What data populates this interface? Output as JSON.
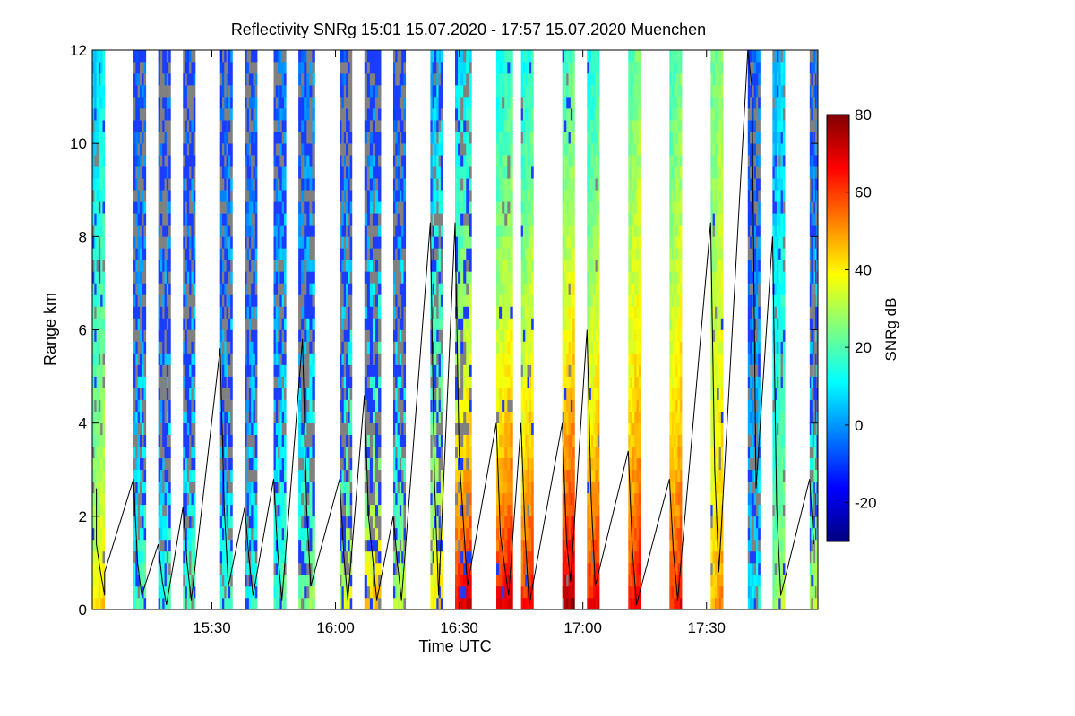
{
  "chart_data": {
    "type": "heatmap",
    "title": "Reflectivity SNRg   15:01 15.07.2020 - 17:57 15.07.2020 Muenchen",
    "xlabel": "Time UTC",
    "ylabel": "Range km",
    "xlim": [
      "15:01",
      "17:57"
    ],
    "ylim": [
      0,
      12
    ],
    "x_ticks": [
      "15:30",
      "16:00",
      "16:30",
      "17:00",
      "17:30"
    ],
    "y_ticks": [
      0,
      2,
      4,
      6,
      8,
      10,
      12
    ],
    "colorbar": {
      "label": "SNRg dB",
      "range": [
        -30,
        80
      ],
      "ticks": [
        -20,
        0,
        20,
        40,
        60,
        80
      ],
      "colors": [
        "#00007f",
        "#0000ff",
        "#007fff",
        "#00ffff",
        "#7fff7f",
        "#ffff00",
        "#ff7f00",
        "#ff0000",
        "#7f0000"
      ]
    },
    "no_data_color": "#808080",
    "scans": [
      {
        "start": "15:01",
        "end": "15:04",
        "surface_snr": 45,
        "top_snr": 8,
        "noise": 0.15
      },
      {
        "start": "15:11",
        "end": "15:14",
        "surface_snr": 22,
        "top_snr": -5,
        "noise": 0.7
      },
      {
        "start": "15:17",
        "end": "15:20",
        "surface_snr": 20,
        "top_snr": -5,
        "noise": 0.8
      },
      {
        "start": "15:23",
        "end": "15:26",
        "surface_snr": 22,
        "top_snr": -5,
        "noise": 0.8
      },
      {
        "start": "15:32",
        "end": "15:35",
        "surface_snr": 20,
        "top_snr": -5,
        "noise": 0.7
      },
      {
        "start": "15:38",
        "end": "15:41",
        "surface_snr": 18,
        "top_snr": -5,
        "noise": 0.65
      },
      {
        "start": "15:45",
        "end": "15:48",
        "surface_snr": 22,
        "top_snr": -3,
        "noise": 0.55
      },
      {
        "start": "15:51",
        "end": "15:55",
        "surface_snr": 28,
        "top_snr": -3,
        "noise": 0.65
      },
      {
        "start": "16:01",
        "end": "16:04",
        "surface_snr": 38,
        "top_snr": -5,
        "noise": 0.8
      },
      {
        "start": "16:07",
        "end": "16:11",
        "surface_snr": 50,
        "top_snr": -5,
        "noise": 0.8
      },
      {
        "start": "16:14",
        "end": "16:17",
        "surface_snr": 35,
        "top_snr": -5,
        "noise": 0.8
      },
      {
        "start": "16:23",
        "end": "16:26",
        "surface_snr": 45,
        "top_snr": 5,
        "noise": 0.45
      },
      {
        "start": "16:29",
        "end": "16:33",
        "surface_snr": 75,
        "top_snr": 8,
        "noise": 0.35
      },
      {
        "start": "16:39",
        "end": "16:43",
        "surface_snr": 75,
        "top_snr": 15,
        "noise": 0.1
      },
      {
        "start": "16:45",
        "end": "16:48",
        "surface_snr": 70,
        "top_snr": 15,
        "noise": 0.05
      },
      {
        "start": "16:55",
        "end": "16:58",
        "surface_snr": 80,
        "top_snr": 18,
        "noise": 0.05
      },
      {
        "start": "17:01",
        "end": "17:04",
        "surface_snr": 72,
        "top_snr": 15,
        "noise": 0.03
      },
      {
        "start": "17:11",
        "end": "17:14",
        "surface_snr": 70,
        "top_snr": 22,
        "noise": 0.0
      },
      {
        "start": "17:21",
        "end": "17:24",
        "surface_snr": 68,
        "top_snr": 20,
        "noise": 0.0
      },
      {
        "start": "17:31",
        "end": "17:34",
        "surface_snr": 52,
        "top_snr": 25,
        "noise": 0.05
      },
      {
        "start": "17:40",
        "end": "17:43",
        "surface_snr": 12,
        "top_snr": -5,
        "noise": 0.55
      },
      {
        "start": "17:46",
        "end": "17:49",
        "surface_snr": 32,
        "top_snr": 5,
        "noise": 0.2
      },
      {
        "start": "17:55",
        "end": "17:57",
        "surface_snr": 35,
        "top_snr": -5,
        "noise": 0.7
      }
    ],
    "line": {
      "color": "#000000",
      "points": [
        [
          "15:02",
          2.6
        ],
        [
          "15:02",
          1.4
        ],
        [
          "15:03",
          0.8
        ],
        [
          "15:04",
          0.3
        ],
        [
          "15:04",
          0.8
        ],
        [
          "15:11",
          2.8
        ],
        [
          "15:12",
          1.0
        ],
        [
          "15:13",
          0.3
        ],
        [
          "15:17",
          1.4
        ],
        [
          "15:18",
          0.6
        ],
        [
          "15:19",
          0.1
        ],
        [
          "15:23",
          2.2
        ],
        [
          "15:24",
          1.0
        ],
        [
          "15:25",
          0.2
        ],
        [
          "15:32",
          5.6
        ],
        [
          "15:33",
          2.2
        ],
        [
          "15:34",
          0.5
        ],
        [
          "15:38",
          2.2
        ],
        [
          "15:39",
          1.1
        ],
        [
          "15:40",
          0.3
        ],
        [
          "15:45",
          2.8
        ],
        [
          "15:46",
          1.2
        ],
        [
          "15:47",
          0.2
        ],
        [
          "15:52",
          5.8
        ],
        [
          "15:53",
          2.2
        ],
        [
          "15:54",
          0.5
        ],
        [
          "16:01",
          2.8
        ],
        [
          "16:02",
          1.2
        ],
        [
          "16:03",
          0.2
        ],
        [
          "16:07",
          4.6
        ],
        [
          "16:08",
          2.0
        ],
        [
          "16:10",
          0.2
        ],
        [
          "16:14",
          2.0
        ],
        [
          "16:15",
          1.0
        ],
        [
          "16:16",
          0.2
        ],
        [
          "16:23",
          8.3
        ],
        [
          "16:24",
          2.8
        ],
        [
          "16:25",
          0.3
        ],
        [
          "16:29",
          8.3
        ],
        [
          "16:30",
          3.3
        ],
        [
          "16:32",
          0.5
        ],
        [
          "16:39",
          4.0
        ],
        [
          "16:40",
          1.6
        ],
        [
          "16:42",
          0.3
        ],
        [
          "16:45",
          4.0
        ],
        [
          "16:46",
          1.6
        ],
        [
          "16:47",
          0.1
        ],
        [
          "16:55",
          4.0
        ],
        [
          "16:56",
          1.5
        ],
        [
          "16:57",
          0.6
        ],
        [
          "17:01",
          6.0
        ],
        [
          "17:02",
          2.4
        ],
        [
          "17:03",
          0.5
        ],
        [
          "17:11",
          3.4
        ],
        [
          "17:12",
          1.3
        ],
        [
          "17:13",
          0.1
        ],
        [
          "17:21",
          2.8
        ],
        [
          "17:22",
          1.2
        ],
        [
          "17:23",
          0.2
        ],
        [
          "17:31",
          8.3
        ],
        [
          "17:32",
          3.0
        ],
        [
          "17:33",
          0.8
        ],
        [
          "17:40",
          12.0
        ],
        [
          "17:41",
          11.2
        ],
        [
          "17:42",
          2.6
        ],
        [
          "17:46",
          8.0
        ],
        [
          "17:47",
          2.2
        ],
        [
          "17:48",
          0.3
        ],
        [
          "17:55",
          2.8
        ],
        [
          "17:56",
          1.4
        ]
      ]
    }
  }
}
